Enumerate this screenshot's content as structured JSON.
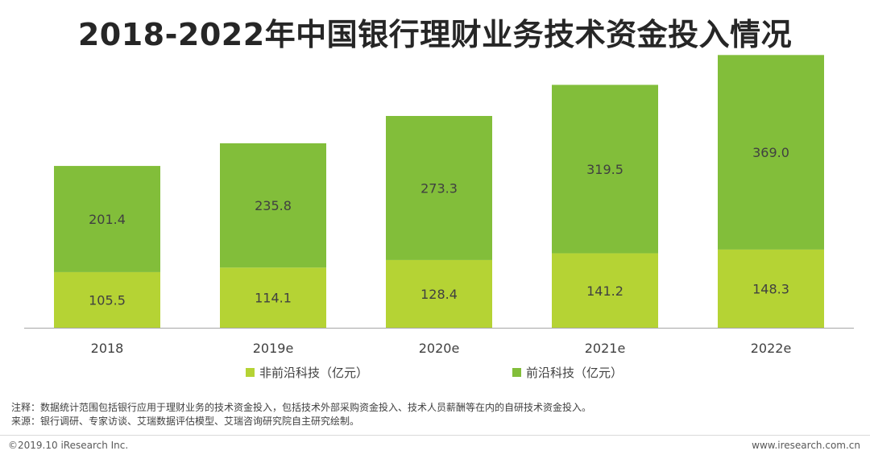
{
  "title": "2018-2022年中国银行理财业务技术资金投入情况",
  "colors": {
    "non_frontier": "#b5d334",
    "frontier": "#82be3a",
    "axis": "#a6a6a6"
  },
  "chart_data": {
    "type": "bar",
    "stacked": true,
    "categories": [
      "2018",
      "2019e",
      "2020e",
      "2021e",
      "2022e"
    ],
    "series": [
      {
        "name": "非前沿科技（亿元）",
        "values": [
          105.5,
          114.1,
          128.4,
          141.2,
          148.3
        ]
      },
      {
        "name": "前沿科技（亿元）",
        "values": [
          201.4,
          235.8,
          273.3,
          319.5,
          369.0
        ]
      }
    ],
    "value_labels": [
      [
        "105.5",
        "114.1",
        "128.4",
        "141.2",
        "148.3"
      ],
      [
        "201.4",
        "235.8",
        "273.3",
        "319.5",
        "369.0"
      ]
    ],
    "ylim": [
      0,
      530
    ],
    "grid": false,
    "legend_position": "bottom"
  },
  "notes": {
    "note": "注释：数据统计范围包括银行应用于理财业务的技术资金投入，包括技术外部采购资金投入、技术人员薪酬等在内的自研技术资金投入。",
    "source": "来源：银行调研、专家访谈、艾瑞数据评估模型、艾瑞咨询研究院自主研究绘制。"
  },
  "footer": {
    "copyright": "©2019.10 iResearch Inc.",
    "website": "www.iresearch.com.cn"
  }
}
